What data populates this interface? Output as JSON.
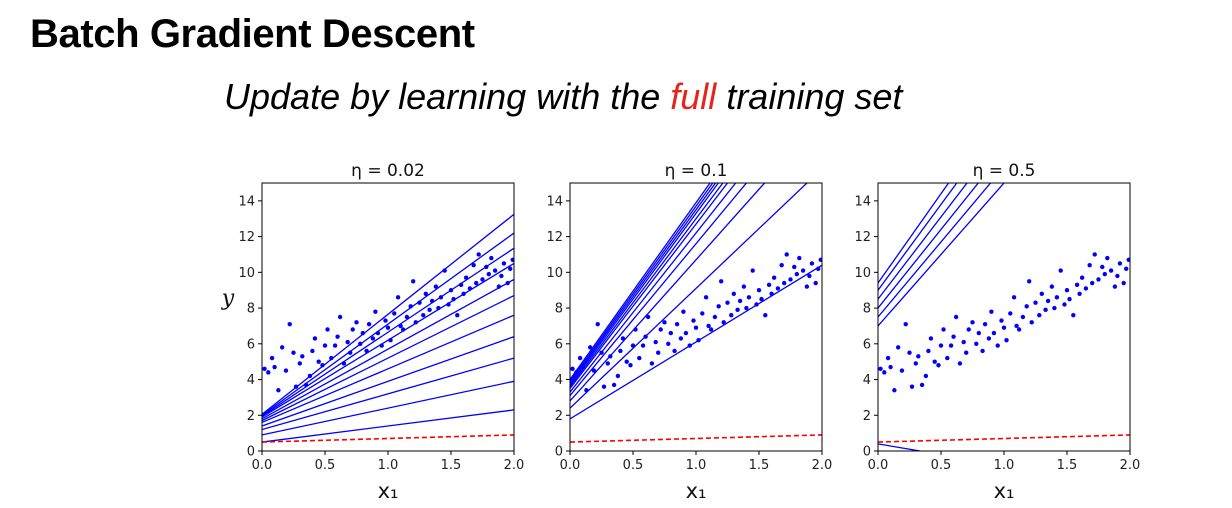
{
  "slide": {
    "title": "Batch Gradient Descent",
    "subtitle_before": "Update by learning with the ",
    "subtitle_highlight": "full",
    "subtitle_after": " training set",
    "highlight_color": "#e8241a"
  },
  "chart_data": [
    {
      "type": "line",
      "title": "η = 0.02",
      "xlabel": "x₁",
      "ylabel": "y",
      "xlim": [
        0,
        2
      ],
      "ylim": [
        0,
        15
      ],
      "xticks": [
        "0.0",
        "0.5",
        "1.0",
        "1.5",
        "2.0"
      ],
      "yticks": [
        "0",
        "2",
        "4",
        "6",
        "8",
        "10",
        "12",
        "14"
      ],
      "scatter_color": "#0000ff",
      "scatter": [
        [
          0.02,
          4.6
        ],
        [
          0.05,
          4.4
        ],
        [
          0.08,
          5.2
        ],
        [
          0.1,
          4.7
        ],
        [
          0.13,
          3.4
        ],
        [
          0.16,
          5.8
        ],
        [
          0.19,
          4.5
        ],
        [
          0.22,
          7.1
        ],
        [
          0.25,
          5.5
        ],
        [
          0.27,
          3.6
        ],
        [
          0.3,
          4.9
        ],
        [
          0.32,
          5.3
        ],
        [
          0.35,
          3.7
        ],
        [
          0.38,
          4.2
        ],
        [
          0.4,
          5.6
        ],
        [
          0.42,
          6.3
        ],
        [
          0.45,
          5.0
        ],
        [
          0.48,
          4.8
        ],
        [
          0.5,
          5.9
        ],
        [
          0.52,
          6.8
        ],
        [
          0.55,
          5.2
        ],
        [
          0.58,
          5.9
        ],
        [
          0.6,
          6.4
        ],
        [
          0.62,
          7.5
        ],
        [
          0.65,
          4.9
        ],
        [
          0.68,
          6.1
        ],
        [
          0.7,
          5.5
        ],
        [
          0.72,
          6.8
        ],
        [
          0.75,
          7.2
        ],
        [
          0.78,
          6.0
        ],
        [
          0.8,
          6.6
        ],
        [
          0.83,
          5.6
        ],
        [
          0.85,
          7.1
        ],
        [
          0.88,
          6.3
        ],
        [
          0.9,
          7.8
        ],
        [
          0.92,
          6.6
        ],
        [
          0.95,
          5.9
        ],
        [
          0.98,
          7.3
        ],
        [
          1.0,
          6.9
        ],
        [
          1.02,
          6.2
        ],
        [
          1.05,
          7.7
        ],
        [
          1.08,
          8.6
        ],
        [
          1.1,
          7.0
        ],
        [
          1.12,
          6.8
        ],
        [
          1.15,
          7.5
        ],
        [
          1.18,
          8.1
        ],
        [
          1.2,
          9.5
        ],
        [
          1.22,
          7.2
        ],
        [
          1.25,
          8.3
        ],
        [
          1.28,
          7.6
        ],
        [
          1.3,
          8.8
        ],
        [
          1.33,
          7.9
        ],
        [
          1.35,
          8.4
        ],
        [
          1.38,
          9.2
        ],
        [
          1.4,
          8.0
        ],
        [
          1.42,
          8.6
        ],
        [
          1.45,
          10.1
        ],
        [
          1.48,
          8.2
        ],
        [
          1.5,
          9.0
        ],
        [
          1.52,
          8.5
        ],
        [
          1.55,
          7.6
        ],
        [
          1.58,
          9.3
        ],
        [
          1.6,
          8.8
        ],
        [
          1.62,
          9.7
        ],
        [
          1.65,
          9.1
        ],
        [
          1.68,
          10.4
        ],
        [
          1.7,
          9.4
        ],
        [
          1.72,
          11.0
        ],
        [
          1.75,
          9.6
        ],
        [
          1.78,
          10.3
        ],
        [
          1.8,
          9.9
        ],
        [
          1.82,
          10.8
        ],
        [
          1.85,
          10.1
        ],
        [
          1.88,
          9.2
        ],
        [
          1.9,
          9.8
        ],
        [
          1.92,
          10.5
        ],
        [
          1.95,
          9.4
        ],
        [
          1.97,
          10.2
        ],
        [
          1.99,
          10.7
        ]
      ],
      "line_color": "#0000ff",
      "lines": [
        [
          0.5,
          0.9
        ],
        [
          0.9,
          1.5
        ],
        [
          1.2,
          2.0
        ],
        [
          1.4,
          2.5
        ],
        [
          1.6,
          3.0
        ],
        [
          1.7,
          3.5
        ],
        [
          1.8,
          3.9
        ],
        [
          1.9,
          4.3
        ],
        [
          1.95,
          4.7
        ],
        [
          2.0,
          5.1
        ],
        [
          2.05,
          5.6
        ]
      ],
      "initial_line_color": "#ff0000",
      "initial_line": [
        0.5,
        0.2
      ]
    },
    {
      "type": "line",
      "title": "η = 0.1",
      "xlabel": "x₁",
      "ylabel": "",
      "xlim": [
        0,
        2
      ],
      "ylim": [
        0,
        15
      ],
      "xticks": [
        "0.0",
        "0.5",
        "1.0",
        "1.5",
        "2.0"
      ],
      "yticks": [
        "0",
        "2",
        "4",
        "6",
        "8",
        "10",
        "12",
        "14"
      ],
      "scatter_color": "#0000ff",
      "scatter": [
        [
          0.02,
          4.6
        ],
        [
          0.05,
          4.4
        ],
        [
          0.08,
          5.2
        ],
        [
          0.1,
          4.7
        ],
        [
          0.13,
          3.4
        ],
        [
          0.16,
          5.8
        ],
        [
          0.19,
          4.5
        ],
        [
          0.22,
          7.1
        ],
        [
          0.25,
          5.5
        ],
        [
          0.27,
          3.6
        ],
        [
          0.3,
          4.9
        ],
        [
          0.32,
          5.3
        ],
        [
          0.35,
          3.7
        ],
        [
          0.38,
          4.2
        ],
        [
          0.4,
          5.6
        ],
        [
          0.42,
          6.3
        ],
        [
          0.45,
          5.0
        ],
        [
          0.48,
          4.8
        ],
        [
          0.5,
          5.9
        ],
        [
          0.52,
          6.8
        ],
        [
          0.55,
          5.2
        ],
        [
          0.58,
          5.9
        ],
        [
          0.6,
          6.4
        ],
        [
          0.62,
          7.5
        ],
        [
          0.65,
          4.9
        ],
        [
          0.68,
          6.1
        ],
        [
          0.7,
          5.5
        ],
        [
          0.72,
          6.8
        ],
        [
          0.75,
          7.2
        ],
        [
          0.78,
          6.0
        ],
        [
          0.8,
          6.6
        ],
        [
          0.83,
          5.6
        ],
        [
          0.85,
          7.1
        ],
        [
          0.88,
          6.3
        ],
        [
          0.9,
          7.8
        ],
        [
          0.92,
          6.6
        ],
        [
          0.95,
          5.9
        ],
        [
          0.98,
          7.3
        ],
        [
          1.0,
          6.9
        ],
        [
          1.02,
          6.2
        ],
        [
          1.05,
          7.7
        ],
        [
          1.08,
          8.6
        ],
        [
          1.1,
          7.0
        ],
        [
          1.12,
          6.8
        ],
        [
          1.15,
          7.5
        ],
        [
          1.18,
          8.1
        ],
        [
          1.2,
          9.5
        ],
        [
          1.22,
          7.2
        ],
        [
          1.25,
          8.3
        ],
        [
          1.28,
          7.6
        ],
        [
          1.3,
          8.8
        ],
        [
          1.33,
          7.9
        ],
        [
          1.35,
          8.4
        ],
        [
          1.38,
          9.2
        ],
        [
          1.4,
          8.0
        ],
        [
          1.42,
          8.6
        ],
        [
          1.45,
          10.1
        ],
        [
          1.48,
          8.2
        ],
        [
          1.5,
          9.0
        ],
        [
          1.52,
          8.5
        ],
        [
          1.55,
          7.6
        ],
        [
          1.58,
          9.3
        ],
        [
          1.6,
          8.8
        ],
        [
          1.62,
          9.7
        ],
        [
          1.65,
          9.1
        ],
        [
          1.68,
          10.4
        ],
        [
          1.7,
          9.4
        ],
        [
          1.72,
          11.0
        ],
        [
          1.75,
          9.6
        ],
        [
          1.78,
          10.3
        ],
        [
          1.8,
          9.9
        ],
        [
          1.82,
          10.8
        ],
        [
          1.85,
          10.1
        ],
        [
          1.88,
          9.2
        ],
        [
          1.9,
          9.8
        ],
        [
          1.92,
          10.5
        ],
        [
          1.95,
          9.4
        ],
        [
          1.97,
          10.2
        ],
        [
          1.99,
          10.7
        ]
      ],
      "line_color": "#0000ff",
      "lines": [
        [
          1.8,
          4.3
        ],
        [
          2.4,
          6.7
        ],
        [
          2.8,
          7.9
        ],
        [
          3.1,
          8.5
        ],
        [
          3.3,
          8.9
        ],
        [
          3.5,
          9.2
        ],
        [
          3.6,
          9.4
        ],
        [
          3.7,
          9.6
        ],
        [
          3.8,
          9.7
        ],
        [
          3.9,
          9.8
        ],
        [
          4.0,
          9.9
        ]
      ],
      "initial_line_color": "#ff0000",
      "initial_line": [
        0.5,
        0.2
      ]
    },
    {
      "type": "line",
      "title": "η = 0.5",
      "xlabel": "x₁",
      "ylabel": "",
      "xlim": [
        0,
        2
      ],
      "ylim": [
        0,
        15
      ],
      "xticks": [
        "0.0",
        "0.5",
        "1.0",
        "1.5",
        "2.0"
      ],
      "yticks": [
        "0",
        "2",
        "4",
        "6",
        "8",
        "10",
        "12",
        "14"
      ],
      "scatter_color": "#0000ff",
      "scatter": [
        [
          0.02,
          4.6
        ],
        [
          0.05,
          4.4
        ],
        [
          0.08,
          5.2
        ],
        [
          0.1,
          4.7
        ],
        [
          0.13,
          3.4
        ],
        [
          0.16,
          5.8
        ],
        [
          0.19,
          4.5
        ],
        [
          0.22,
          7.1
        ],
        [
          0.25,
          5.5
        ],
        [
          0.27,
          3.6
        ],
        [
          0.3,
          4.9
        ],
        [
          0.32,
          5.3
        ],
        [
          0.35,
          3.7
        ],
        [
          0.38,
          4.2
        ],
        [
          0.4,
          5.6
        ],
        [
          0.42,
          6.3
        ],
        [
          0.45,
          5.0
        ],
        [
          0.48,
          4.8
        ],
        [
          0.5,
          5.9
        ],
        [
          0.52,
          6.8
        ],
        [
          0.55,
          5.2
        ],
        [
          0.58,
          5.9
        ],
        [
          0.6,
          6.4
        ],
        [
          0.62,
          7.5
        ],
        [
          0.65,
          4.9
        ],
        [
          0.68,
          6.1
        ],
        [
          0.7,
          5.5
        ],
        [
          0.72,
          6.8
        ],
        [
          0.75,
          7.2
        ],
        [
          0.78,
          6.0
        ],
        [
          0.8,
          6.6
        ],
        [
          0.83,
          5.6
        ],
        [
          0.85,
          7.1
        ],
        [
          0.88,
          6.3
        ],
        [
          0.9,
          7.8
        ],
        [
          0.92,
          6.6
        ],
        [
          0.95,
          5.9
        ],
        [
          0.98,
          7.3
        ],
        [
          1.0,
          6.9
        ],
        [
          1.02,
          6.2
        ],
        [
          1.05,
          7.7
        ],
        [
          1.08,
          8.6
        ],
        [
          1.1,
          7.0
        ],
        [
          1.12,
          6.8
        ],
        [
          1.15,
          7.5
        ],
        [
          1.18,
          8.1
        ],
        [
          1.2,
          9.5
        ],
        [
          1.22,
          7.2
        ],
        [
          1.25,
          8.3
        ],
        [
          1.28,
          7.6
        ],
        [
          1.3,
          8.8
        ],
        [
          1.33,
          7.9
        ],
        [
          1.35,
          8.4
        ],
        [
          1.38,
          9.2
        ],
        [
          1.4,
          8.0
        ],
        [
          1.42,
          8.6
        ],
        [
          1.45,
          10.1
        ],
        [
          1.48,
          8.2
        ],
        [
          1.5,
          9.0
        ],
        [
          1.52,
          8.5
        ],
        [
          1.55,
          7.6
        ],
        [
          1.58,
          9.3
        ],
        [
          1.6,
          8.8
        ],
        [
          1.62,
          9.7
        ],
        [
          1.65,
          9.1
        ],
        [
          1.68,
          10.4
        ],
        [
          1.7,
          9.4
        ],
        [
          1.72,
          11.0
        ],
        [
          1.75,
          9.6
        ],
        [
          1.78,
          10.3
        ],
        [
          1.8,
          9.9
        ],
        [
          1.82,
          10.8
        ],
        [
          1.85,
          10.1
        ],
        [
          1.88,
          9.2
        ],
        [
          1.9,
          9.8
        ],
        [
          1.92,
          10.5
        ],
        [
          1.95,
          9.4
        ],
        [
          1.97,
          10.2
        ],
        [
          1.99,
          10.7
        ]
      ],
      "line_color": "#0000ff",
      "lines": [
        [
          0.4,
          -1.2
        ],
        [
          7.0,
          8.0
        ],
        [
          7.5,
          8.4
        ],
        [
          8.0,
          8.8
        ],
        [
          8.5,
          9.2
        ],
        [
          9.0,
          9.6
        ],
        [
          9.4,
          10.0
        ]
      ],
      "initial_line_color": "#ff0000",
      "initial_line": [
        0.5,
        0.2
      ]
    }
  ]
}
